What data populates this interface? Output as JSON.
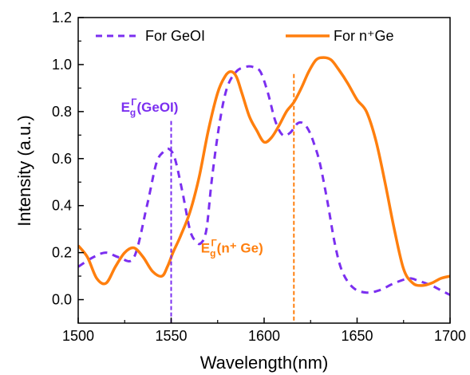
{
  "chart_data": {
    "type": "line",
    "xlabel": "Wavelength(nm)",
    "ylabel": "Intensity (a.u.)",
    "xlim": [
      1500,
      1700
    ],
    "ylim": [
      -0.1,
      1.2
    ],
    "xticks": [
      "1500",
      "1550",
      "1600",
      "1650",
      "1700"
    ],
    "yticks": [
      "0.0",
      "0.2",
      "0.4",
      "0.6",
      "0.8",
      "1.0",
      "1.2"
    ],
    "legend_position": "top",
    "series": [
      {
        "name": "For GeOI",
        "color": "#7b2ff0",
        "style": "dashed",
        "x": [
          1500,
          1508,
          1515,
          1522,
          1530,
          1537,
          1542,
          1546,
          1549,
          1552,
          1556,
          1560,
          1563,
          1566,
          1569,
          1572,
          1576,
          1580,
          1585,
          1590,
          1594,
          1598,
          1602,
          1606,
          1610,
          1614,
          1618,
          1621,
          1624,
          1627,
          1630,
          1634,
          1638,
          1642,
          1648,
          1655,
          1662,
          1670,
          1678,
          1683,
          1690,
          1695,
          1700
        ],
        "y": [
          0.14,
          0.18,
          0.2,
          0.18,
          0.18,
          0.4,
          0.58,
          0.63,
          0.64,
          0.6,
          0.46,
          0.3,
          0.25,
          0.24,
          0.3,
          0.52,
          0.75,
          0.9,
          0.97,
          0.99,
          0.99,
          0.97,
          0.88,
          0.76,
          0.7,
          0.71,
          0.75,
          0.75,
          0.72,
          0.66,
          0.58,
          0.42,
          0.24,
          0.12,
          0.05,
          0.03,
          0.04,
          0.07,
          0.09,
          0.08,
          0.06,
          0.04,
          0.02
        ]
      },
      {
        "name": "For n⁺Ge",
        "color": "#ff7f0e",
        "style": "solid",
        "x": [
          1500,
          1505,
          1510,
          1515,
          1520,
          1525,
          1530,
          1535,
          1540,
          1545,
          1548,
          1551,
          1555,
          1560,
          1565,
          1570,
          1575,
          1579,
          1582,
          1585,
          1588,
          1592,
          1596,
          1600,
          1604,
          1608,
          1612,
          1616,
          1620,
          1624,
          1628,
          1632,
          1636,
          1640,
          1645,
          1650,
          1655,
          1660,
          1665,
          1670,
          1675,
          1680,
          1685,
          1690,
          1695,
          1700
        ],
        "y": [
          0.23,
          0.18,
          0.09,
          0.07,
          0.14,
          0.2,
          0.22,
          0.18,
          0.12,
          0.1,
          0.14,
          0.2,
          0.27,
          0.37,
          0.52,
          0.72,
          0.88,
          0.95,
          0.97,
          0.95,
          0.88,
          0.78,
          0.72,
          0.67,
          0.69,
          0.74,
          0.8,
          0.84,
          0.9,
          0.97,
          1.02,
          1.03,
          1.02,
          0.98,
          0.92,
          0.85,
          0.8,
          0.68,
          0.5,
          0.3,
          0.13,
          0.07,
          0.06,
          0.07,
          0.09,
          0.1
        ]
      }
    ],
    "annotations": [
      {
        "id": "geoi",
        "x": 1550,
        "base": "E",
        "sub": "g",
        "sup": "Γ",
        "label": "(GeOI)",
        "color": "#7b2ff0",
        "text_x": 1523,
        "text_y": 0.8
      },
      {
        "id": "nge",
        "x": 1616,
        "base": "E",
        "sub": "g",
        "sup": "Γ",
        "label": "(n⁺ Ge)",
        "color": "#ff7f0e",
        "text_x": 1566,
        "text_y": 0.2
      }
    ]
  }
}
